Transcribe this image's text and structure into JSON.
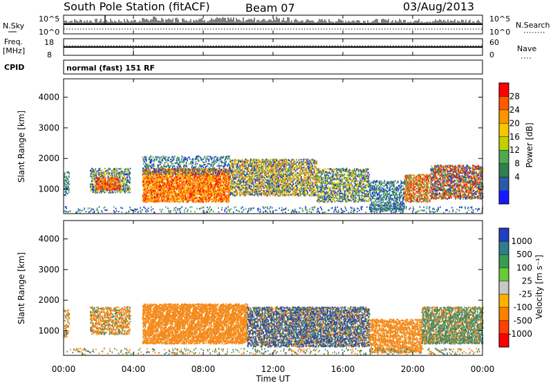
{
  "header": {
    "station": "South Pole Station (fitACF)",
    "beam": "Beam 07",
    "date": "03/Aug/2013"
  },
  "noise_panel": {
    "left_label": "N.Sky",
    "right_label": "N.Search",
    "ticks_left": [
      "10^5",
      "10^0"
    ],
    "ticks_right": [
      "10^5",
      "10^0"
    ]
  },
  "freq_panel": {
    "left_label_1": "Freq.",
    "left_label_2": "[MHz]",
    "right_label": "Nave",
    "ticks_left": [
      "18",
      "8"
    ],
    "ticks_right": [
      "60",
      "0"
    ]
  },
  "cpid": {
    "label": "CPID",
    "program": "normal (fast) 151 RF"
  },
  "chart_data": [
    {
      "type": "heatmap",
      "name": "power",
      "ylabel": "Slant Range [km]",
      "ylim": [
        200,
        4600
      ],
      "y_ticks": [
        "1000",
        "2000",
        "3000",
        "4000"
      ],
      "x_ticks": [
        "00:00",
        "04:00",
        "08:00",
        "12:00",
        "16:00",
        "20:00",
        "00:00"
      ],
      "colorbar": {
        "label": "Power [dB]",
        "ticks": [
          "28",
          "24",
          "20",
          "16",
          "12",
          "8",
          "4"
        ],
        "colors": [
          "#ff0000",
          "#ff5a00",
          "#ff9400",
          "#f5c800",
          "#c0d000",
          "#50a850",
          "#2f7f50",
          "#2a5aa8",
          "#1818ff"
        ]
      }
    },
    {
      "type": "heatmap",
      "name": "velocity",
      "ylabel": "Slant Range [km]",
      "ylim": [
        200,
        4600
      ],
      "y_ticks": [
        "1000",
        "2000",
        "3000",
        "4000"
      ],
      "x_ticks": [
        "00:00",
        "04:00",
        "08:00",
        "12:00",
        "16:00",
        "20:00",
        "00:00"
      ],
      "xlabel": "Time UT",
      "colorbar": {
        "label": "Velocity [m s⁻¹]",
        "ticks": [
          "1000",
          "500",
          "100",
          "25",
          "-25",
          "-100",
          "-500",
          "-1000"
        ],
        "colors": [
          "#2040c0",
          "#2e7f8a",
          "#3a9a50",
          "#66cc33",
          "#c8c8c8",
          "#ffb000",
          "#ff8000",
          "#ff4000",
          "#ff0000"
        ]
      }
    }
  ],
  "colors": {
    "pw_red": "#ff1a00",
    "pw_orange": "#ff8a00",
    "pw_yellow": "#f2c200",
    "pw_green": "#4aa050",
    "pw_blue": "#2040c8",
    "vel_orange": "#f48a1a",
    "vel_green": "#3a8a6a",
    "vel_blue": "#2a4aa0"
  }
}
